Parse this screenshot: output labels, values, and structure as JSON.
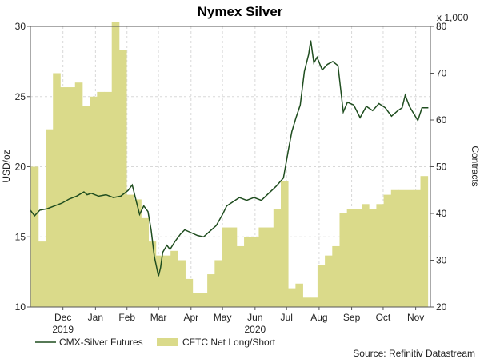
{
  "chart_data": {
    "type": "bar+line",
    "title": "Nymex Silver",
    "ylabel_left": "USD/oz",
    "ylabel_right": "Contracts",
    "right_multiplier": "x 1,000",
    "source": "Source: Refinitiv Datastream",
    "ylim_left": [
      10,
      30
    ],
    "yticks_left": [
      "10",
      "15",
      "20",
      "25",
      "30"
    ],
    "ylim_right": [
      20,
      80
    ],
    "yticks_right": [
      "20",
      "30",
      "40",
      "50",
      "60",
      "70",
      "80"
    ],
    "x_start": "2019-11-15",
    "x_end": "2020-11-30",
    "months": [
      {
        "label": "Dec",
        "date": "2019-12-16"
      },
      {
        "label": "Jan",
        "date": "2020-01-16"
      },
      {
        "label": "Feb",
        "date": "2020-02-15"
      },
      {
        "label": "Mar",
        "date": "2020-03-16"
      },
      {
        "label": "Apr",
        "date": "2020-04-16"
      },
      {
        "label": "May",
        "date": "2020-05-16"
      },
      {
        "label": "Jun",
        "date": "2020-06-16"
      },
      {
        "label": "Jul",
        "date": "2020-07-16"
      },
      {
        "label": "Aug",
        "date": "2020-08-16"
      },
      {
        "label": "Sep",
        "date": "2020-09-16"
      },
      {
        "label": "Oct",
        "date": "2020-10-16"
      },
      {
        "label": "Nov",
        "date": "2020-11-16"
      }
    ],
    "years": [
      {
        "label": "2019",
        "date": "2019-12-16"
      },
      {
        "label": "2020",
        "date": "2020-06-16"
      }
    ],
    "grid": true,
    "legend_placement": "bottom-left",
    "series": [
      {
        "name": "CMX-Silver Futures",
        "type": "line",
        "axis": "left",
        "color": "#1f4d1f",
        "x": [
          "2019-11-15",
          "2019-11-19",
          "2019-11-24",
          "2019-12-01",
          "2019-12-08",
          "2019-12-15",
          "2019-12-22",
          "2019-12-29",
          "2020-01-05",
          "2020-01-08",
          "2020-01-12",
          "2020-01-19",
          "2020-01-26",
          "2020-02-02",
          "2020-02-09",
          "2020-02-16",
          "2020-02-20",
          "2020-02-24",
          "2020-02-27",
          "2020-03-02",
          "2020-03-06",
          "2020-03-09",
          "2020-03-12",
          "2020-03-16",
          "2020-03-18",
          "2020-03-20",
          "2020-03-24",
          "2020-03-27",
          "2020-04-01",
          "2020-04-06",
          "2020-04-10",
          "2020-04-16",
          "2020-04-22",
          "2020-04-28",
          "2020-05-04",
          "2020-05-10",
          "2020-05-16",
          "2020-05-20",
          "2020-05-26",
          "2020-06-01",
          "2020-06-08",
          "2020-06-15",
          "2020-06-22",
          "2020-06-29",
          "2020-07-06",
          "2020-07-13",
          "2020-07-18",
          "2020-07-21",
          "2020-07-25",
          "2020-07-29",
          "2020-08-02",
          "2020-08-06",
          "2020-08-08",
          "2020-08-11",
          "2020-08-14",
          "2020-08-19",
          "2020-08-24",
          "2020-08-29",
          "2020-09-03",
          "2020-09-08",
          "2020-09-12",
          "2020-09-18",
          "2020-09-24",
          "2020-09-30",
          "2020-10-06",
          "2020-10-12",
          "2020-10-18",
          "2020-10-24",
          "2020-10-30",
          "2020-11-03",
          "2020-11-06",
          "2020-11-10",
          "2020-11-14",
          "2020-11-18",
          "2020-11-22",
          "2020-11-28"
        ],
        "values": [
          16.9,
          16.5,
          16.9,
          17.0,
          17.2,
          17.4,
          17.7,
          17.9,
          18.2,
          18.0,
          18.1,
          17.9,
          18.0,
          17.8,
          17.9,
          18.3,
          18.7,
          17.5,
          16.6,
          17.2,
          16.8,
          15.5,
          13.6,
          12.2,
          12.8,
          13.9,
          14.4,
          14.1,
          14.7,
          15.2,
          15.5,
          15.3,
          15.1,
          15.0,
          15.4,
          15.8,
          16.6,
          17.2,
          17.5,
          17.8,
          17.6,
          17.8,
          17.6,
          18.1,
          18.6,
          19.2,
          21.3,
          22.5,
          23.5,
          24.4,
          26.8,
          28.0,
          29.0,
          27.4,
          27.8,
          26.9,
          27.3,
          27.5,
          27.2,
          23.9,
          24.6,
          24.4,
          23.5,
          24.3,
          24.0,
          24.5,
          24.2,
          23.6,
          24.0,
          24.2,
          25.1,
          24.3,
          23.8,
          23.3,
          24.2,
          24.2
        ]
      },
      {
        "name": "CFTC Net Long/Short",
        "type": "bar",
        "axis": "right",
        "color": "#dada8a",
        "x": [
          "2019-11-19",
          "2019-11-26",
          "2019-12-03",
          "2019-12-10",
          "2019-12-17",
          "2019-12-24",
          "2019-12-31",
          "2020-01-07",
          "2020-01-14",
          "2020-01-21",
          "2020-01-28",
          "2020-02-04",
          "2020-02-11",
          "2020-02-18",
          "2020-02-25",
          "2020-03-03",
          "2020-03-10",
          "2020-03-17",
          "2020-03-24",
          "2020-03-31",
          "2020-04-07",
          "2020-04-14",
          "2020-04-21",
          "2020-04-28",
          "2020-05-05",
          "2020-05-12",
          "2020-05-19",
          "2020-05-26",
          "2020-06-02",
          "2020-06-09",
          "2020-06-16",
          "2020-06-23",
          "2020-06-30",
          "2020-07-07",
          "2020-07-14",
          "2020-07-21",
          "2020-07-28",
          "2020-08-04",
          "2020-08-11",
          "2020-08-18",
          "2020-08-25",
          "2020-09-01",
          "2020-09-08",
          "2020-09-15",
          "2020-09-22",
          "2020-09-29",
          "2020-10-06",
          "2020-10-13",
          "2020-10-20",
          "2020-10-27",
          "2020-11-03",
          "2020-11-10",
          "2020-11-17",
          "2020-11-24"
        ],
        "values": [
          50,
          34,
          58,
          70,
          67,
          67,
          68,
          63,
          65,
          66,
          66,
          81,
          75,
          44,
          43,
          39,
          34,
          31,
          31,
          32,
          30,
          26,
          23,
          23,
          27,
          30,
          37,
          37,
          33,
          35,
          35,
          37,
          37,
          41,
          47,
          24,
          25,
          22,
          22,
          29,
          31,
          33,
          40,
          41,
          41,
          42,
          41,
          42,
          44,
          45,
          45,
          45,
          45,
          48
        ]
      }
    ]
  }
}
